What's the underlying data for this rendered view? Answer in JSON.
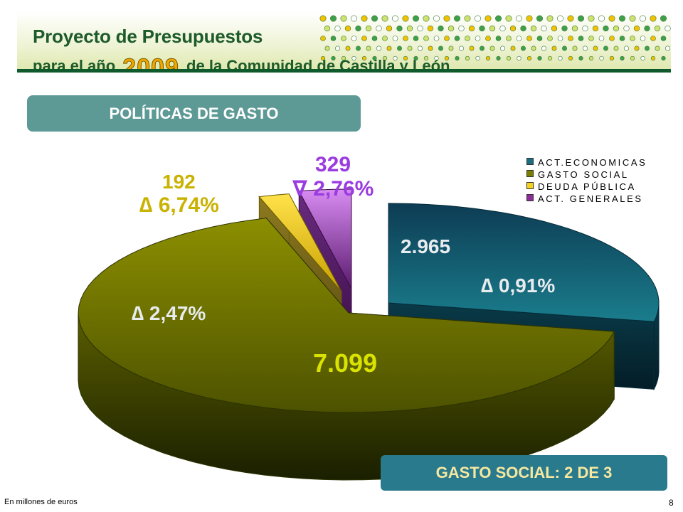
{
  "header": {
    "title_line1": "Proyecto de Presupuestos",
    "title_line2_prefix": "para el año",
    "year": "2009",
    "title_line2_suffix": "de la Comunidad de Castilla y León"
  },
  "section_label": "POLÍTICAS DE GASTO",
  "chart_data": {
    "type": "pie",
    "title": "",
    "legend_position": "top-right",
    "categories": [
      "ACT.ECONOMICAS",
      "GASTO SOCIAL",
      "DEUDA PÚBLICA",
      "ACT. GENERALES"
    ],
    "values": [
      2965,
      7099,
      192,
      329
    ],
    "value_labels": [
      "2.965",
      "7.099",
      "192",
      "329"
    ],
    "change_labels": [
      "∆ 0,91%",
      "∆ 2,47%",
      "∆ 6,74%",
      "∇ 2,76%"
    ],
    "colors": [
      "#1b6e80",
      "#7a7f00",
      "#f8d21a",
      "#8e2c9c"
    ],
    "exploded": [
      true,
      false,
      true,
      true
    ]
  },
  "summary_box": "GASTO SOCIAL: 2 DE 3",
  "footnote": "En millones de euros",
  "page_number": "8"
}
